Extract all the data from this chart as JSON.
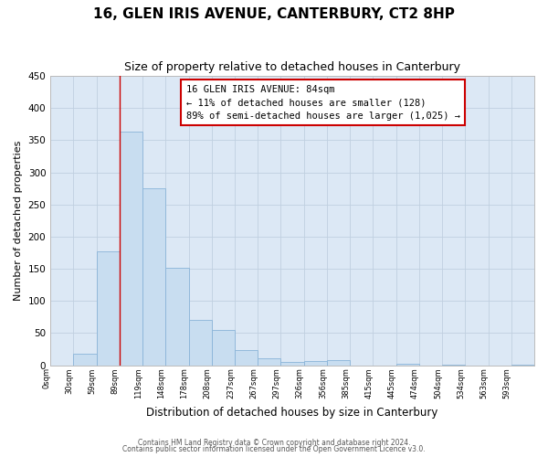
{
  "title": "16, GLEN IRIS AVENUE, CANTERBURY, CT2 8HP",
  "subtitle": "Size of property relative to detached houses in Canterbury",
  "xlabel": "Distribution of detached houses by size in Canterbury",
  "ylabel": "Number of detached properties",
  "bar_labels": [
    "0sqm",
    "30sqm",
    "59sqm",
    "89sqm",
    "119sqm",
    "148sqm",
    "178sqm",
    "208sqm",
    "237sqm",
    "267sqm",
    "297sqm",
    "326sqm",
    "356sqm",
    "385sqm",
    "415sqm",
    "445sqm",
    "474sqm",
    "504sqm",
    "534sqm",
    "563sqm",
    "593sqm"
  ],
  "bar_values": [
    0,
    18,
    177,
    364,
    275,
    151,
    70,
    55,
    23,
    10,
    5,
    6,
    8,
    0,
    0,
    2,
    0,
    1,
    0,
    0,
    1
  ],
  "bar_color": "#c8ddf0",
  "bar_edge_color": "#8ab4d8",
  "vline_x_index": 3,
  "vline_color": "#cc0000",
  "ylim": [
    0,
    450
  ],
  "yticks": [
    0,
    50,
    100,
    150,
    200,
    250,
    300,
    350,
    400,
    450
  ],
  "annotation_title": "16 GLEN IRIS AVENUE: 84sqm",
  "annotation_line1": "← 11% of detached houses are smaller (128)",
  "annotation_line2": "89% of semi-detached houses are larger (1,025) →",
  "annotation_box_facecolor": "#ffffff",
  "annotation_box_edgecolor": "#cc0000",
  "grid_color": "#c0d0e0",
  "plot_bg_color": "#dce8f5",
  "fig_bg_color": "#ffffff",
  "footer1": "Contains HM Land Registry data © Crown copyright and database right 2024.",
  "footer2": "Contains public sector information licensed under the Open Government Licence v3.0."
}
